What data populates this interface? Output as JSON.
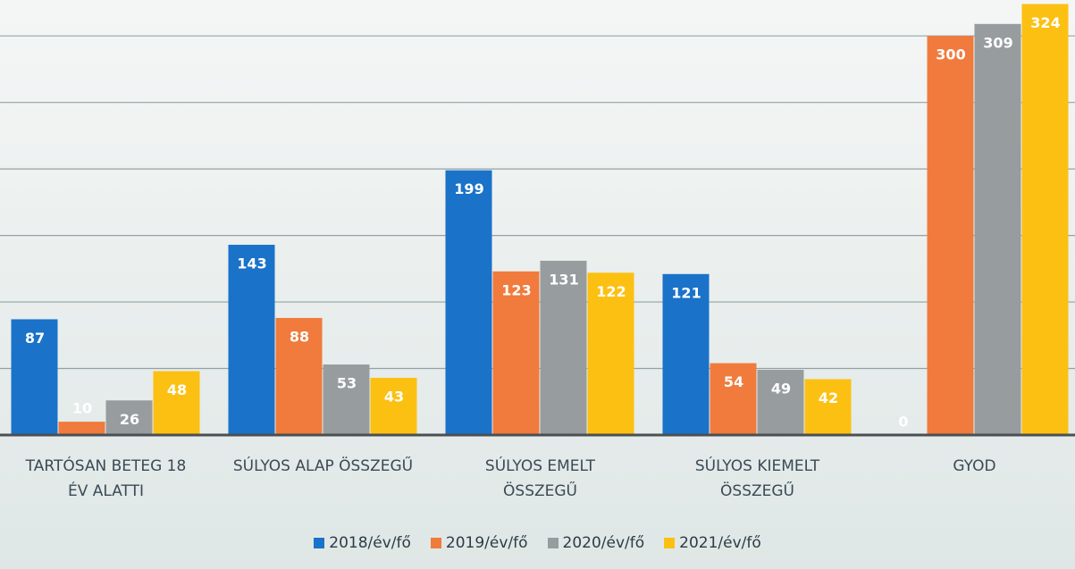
{
  "chart_data": {
    "type": "bar",
    "categories": [
      "TARTÓSAN BETEG 18\nÉV ALATTI",
      "SÚLYOS ALAP ÖSSZEGŰ",
      "SÚLYOS EMELT\nÖSSZEGŰ",
      "SÚLYOS KIEMELT\nÖSSZEGŰ",
      "GYOD"
    ],
    "series": [
      {
        "name": "2018/év/fő",
        "color": "#1a72c9",
        "values": [
          87,
          143,
          199,
          121,
          0
        ]
      },
      {
        "name": "2019/év/fő",
        "color": "#f07b3c",
        "values": [
          10,
          88,
          123,
          54,
          300
        ]
      },
      {
        "name": "2020/év/fő",
        "color": "#979c9e",
        "values": [
          26,
          53,
          131,
          49,
          309
        ]
      },
      {
        "name": "2021/év/fő",
        "color": "#fcc012",
        "values": [
          48,
          43,
          122,
          42,
          324
        ]
      }
    ],
    "ylim": [
      0,
      327
    ],
    "yticks": [
      0,
      50,
      100,
      150,
      200,
      250,
      300
    ],
    "grid": true,
    "legend": "bottom"
  }
}
